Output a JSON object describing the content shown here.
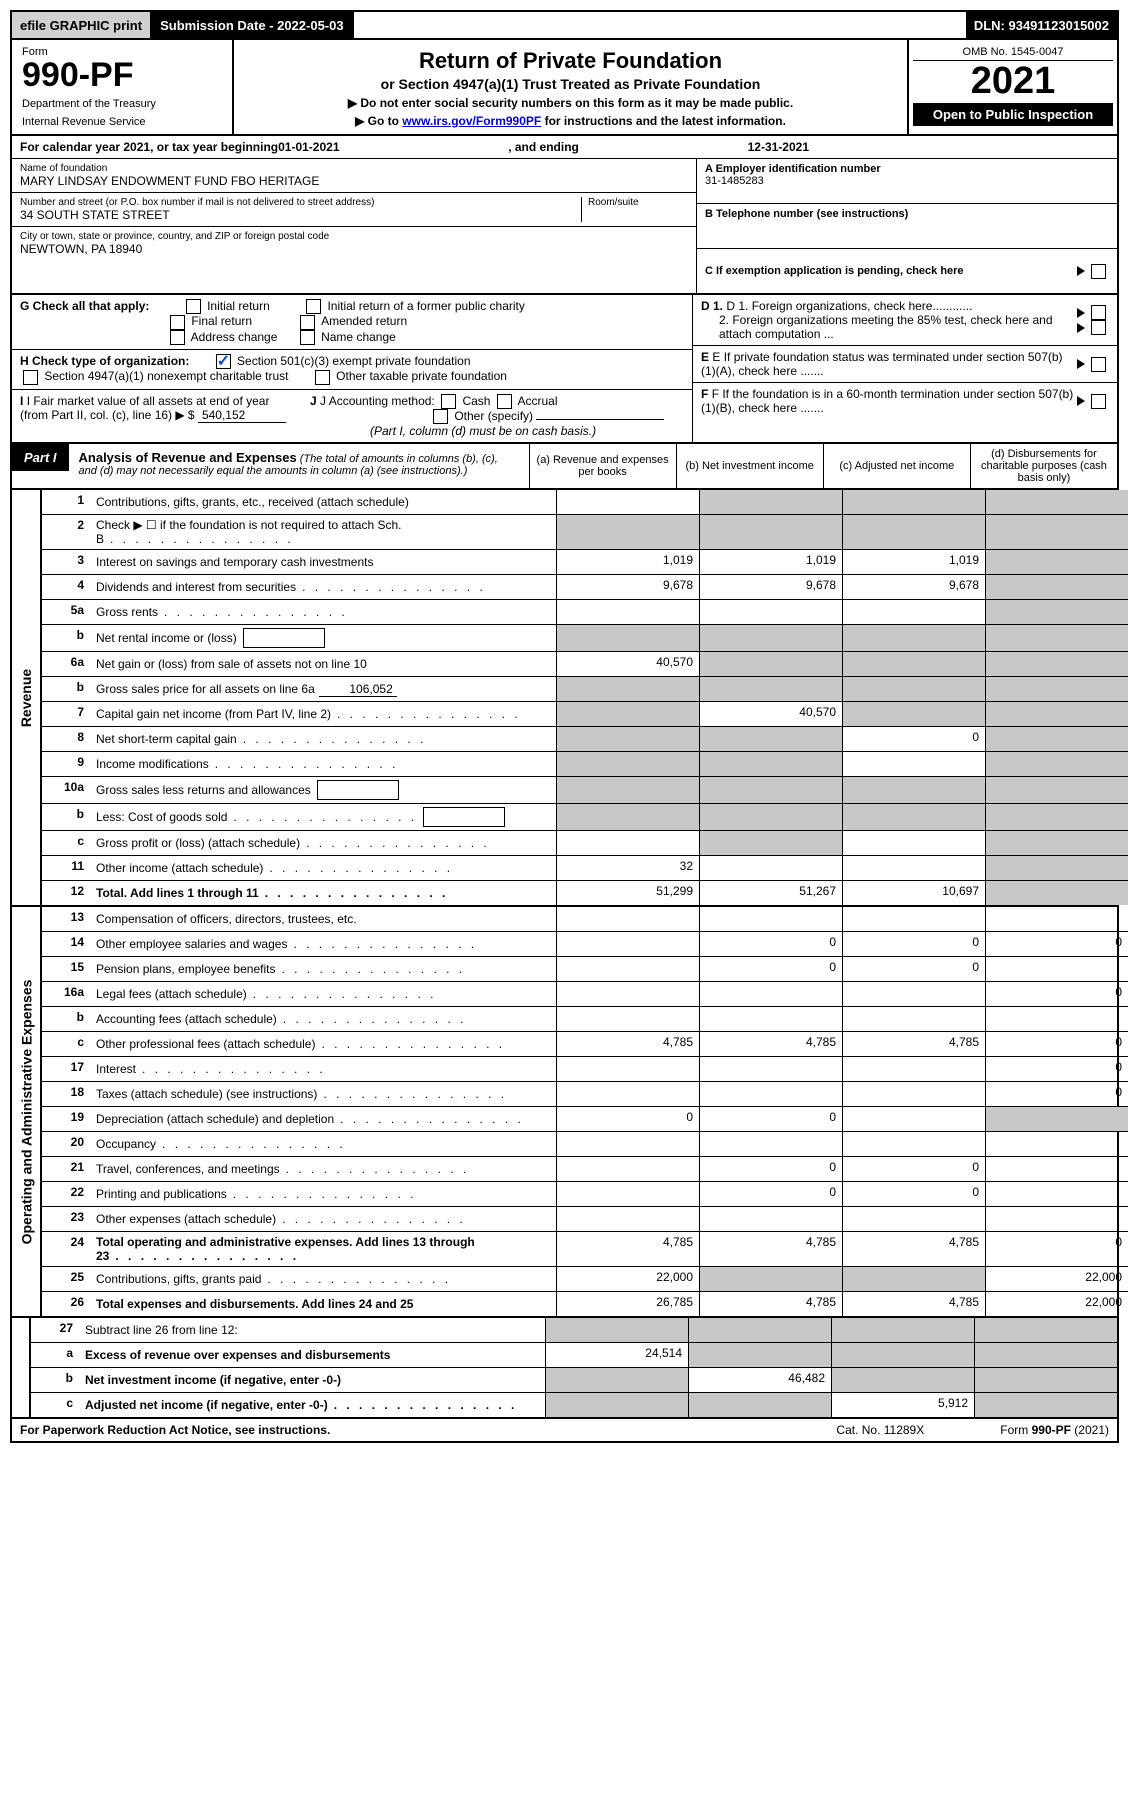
{
  "colors": {
    "black": "#000000",
    "white": "#ffffff",
    "grey_cell": "#c8c8c8",
    "grey_bar": "#d0d0d0",
    "link": "#0000cc",
    "check_blue": "#0050d0"
  },
  "top_bar": {
    "efile": "efile GRAPHIC print",
    "submission": "Submission Date - 2022-05-03",
    "dln": "DLN: 93491123015002"
  },
  "header": {
    "form_label": "Form",
    "form_number": "990-PF",
    "dept1": "Department of the Treasury",
    "dept2": "Internal Revenue Service",
    "title": "Return of Private Foundation",
    "subtitle": "or Section 4947(a)(1) Trust Treated as Private Foundation",
    "instr1": "▶ Do not enter social security numbers on this form as it may be made public.",
    "instr2_pre": "▶ Go to ",
    "instr2_link": "www.irs.gov/Form990PF",
    "instr2_post": " for instructions and the latest information.",
    "omb": "OMB No. 1545-0047",
    "year": "2021",
    "open_public": "Open to Public Inspection"
  },
  "info": {
    "cal_year_pre": "For calendar year 2021, or tax year beginning ",
    "cal_year_begin": "01-01-2021",
    "cal_year_mid": " , and ending ",
    "cal_year_end": "12-31-2021",
    "name_label": "Name of foundation",
    "name_val": "MARY LINDSAY ENDOWMENT FUND FBO HERITAGE",
    "addr_label": "Number and street (or P.O. box number if mail is not delivered to street address)",
    "addr_val": "34 SOUTH STATE STREET",
    "room_label": "Room/suite",
    "city_label": "City or town, state or province, country, and ZIP or foreign postal code",
    "city_val": "NEWTOWN, PA  18940",
    "ein_label": "A Employer identification number",
    "ein_val": "31-1485283",
    "phone_label": "B Telephone number (see instructions)",
    "c_label": "C If exemption application is pending, check here"
  },
  "checks": {
    "g_label": "G Check all that apply:",
    "g_initial": "Initial return",
    "g_initial_former": "Initial return of a former public charity",
    "g_final": "Final return",
    "g_amended": "Amended return",
    "g_address": "Address change",
    "g_name": "Name change",
    "h_label": "H Check type of organization:",
    "h_501c3": "Section 501(c)(3) exempt private foundation",
    "h_4947": "Section 4947(a)(1) nonexempt charitable trust",
    "h_other": "Other taxable private foundation",
    "i_label": "I Fair market value of all assets at end of year (from Part II, col. (c), line 16) ▶ $",
    "i_val": "540,152",
    "j_label": "J Accounting method:",
    "j_cash": "Cash",
    "j_accrual": "Accrual",
    "j_other": "Other (specify)",
    "j_note": "(Part I, column (d) must be on cash basis.)",
    "d1": "D 1. Foreign organizations, check here............",
    "d2": "2. Foreign organizations meeting the 85% test, check here and attach computation ...",
    "e": "E If private foundation status was terminated under section 507(b)(1)(A), check here .......",
    "f": "F If the foundation is in a 60-month termination under section 507(b)(1)(B), check here .......",
    "h_501c3_checked": true
  },
  "part1": {
    "tab": "Part I",
    "title": "Analysis of Revenue and Expenses",
    "note": " (The total of amounts in columns (b), (c), and (d) may not necessarily equal the amounts in column (a) (see instructions).)",
    "col_a": "(a) Revenue and expenses per books",
    "col_b": "(b) Net investment income",
    "col_c": "(c) Adjusted net income",
    "col_d": "(d) Disbursements for charitable purposes (cash basis only)"
  },
  "sections": [
    {
      "side": "Revenue",
      "rows": [
        {
          "n": "1",
          "desc": "Contributions, gifts, grants, etc., received (attach schedule)",
          "a": "",
          "b": "g",
          "c": "g",
          "d": "g"
        },
        {
          "n": "2",
          "desc": "Check ▶ ☐ if the foundation is not required to attach Sch. B",
          "dots": true,
          "a": "g",
          "b": "g",
          "c": "g",
          "d": "g"
        },
        {
          "n": "3",
          "desc": "Interest on savings and temporary cash investments",
          "a": "1,019",
          "b": "1,019",
          "c": "1,019",
          "d": "g"
        },
        {
          "n": "4",
          "desc": "Dividends and interest from securities",
          "dots": true,
          "a": "9,678",
          "b": "9,678",
          "c": "9,678",
          "d": "g"
        },
        {
          "n": "5a",
          "desc": "Gross rents",
          "dots": true,
          "a": "",
          "b": "",
          "c": "",
          "d": "g"
        },
        {
          "n": "b",
          "desc": "Net rental income or (loss)",
          "inline_box": true,
          "a": "g",
          "b": "g",
          "c": "g",
          "d": "g"
        },
        {
          "n": "6a",
          "desc": "Net gain or (loss) from sale of assets not on line 10",
          "a": "40,570",
          "b": "g",
          "c": "g",
          "d": "g"
        },
        {
          "n": "b",
          "desc": "Gross sales price for all assets on line 6a",
          "inline_under": "106,052",
          "a": "g",
          "b": "g",
          "c": "g",
          "d": "g"
        },
        {
          "n": "7",
          "desc": "Capital gain net income (from Part IV, line 2)",
          "dots": true,
          "a": "g",
          "b": "40,570",
          "c": "g",
          "d": "g"
        },
        {
          "n": "8",
          "desc": "Net short-term capital gain",
          "dots": true,
          "a": "g",
          "b": "g",
          "c": "0",
          "d": "g"
        },
        {
          "n": "9",
          "desc": "Income modifications",
          "dots": true,
          "a": "g",
          "b": "g",
          "c": "",
          "d": "g"
        },
        {
          "n": "10a",
          "desc": "Gross sales less returns and allowances",
          "inline_box": true,
          "a": "g",
          "b": "g",
          "c": "g",
          "d": "g"
        },
        {
          "n": "b",
          "desc": "Less: Cost of goods sold",
          "dots": true,
          "inline_box": true,
          "a": "g",
          "b": "g",
          "c": "g",
          "d": "g"
        },
        {
          "n": "c",
          "desc": "Gross profit or (loss) (attach schedule)",
          "dots": true,
          "a": "",
          "b": "g",
          "c": "",
          "d": "g"
        },
        {
          "n": "11",
          "desc": "Other income (attach schedule)",
          "dots": true,
          "a": "32",
          "b": "",
          "c": "",
          "d": "g"
        },
        {
          "n": "12",
          "desc": "Total. Add lines 1 through 11",
          "bold": true,
          "dots": true,
          "a": "51,299",
          "b": "51,267",
          "c": "10,697",
          "d": "g"
        }
      ]
    },
    {
      "side": "Operating and Administrative Expenses",
      "rows": [
        {
          "n": "13",
          "desc": "Compensation of officers, directors, trustees, etc.",
          "a": "",
          "b": "",
          "c": "",
          "d": ""
        },
        {
          "n": "14",
          "desc": "Other employee salaries and wages",
          "dots": true,
          "a": "",
          "b": "0",
          "c": "0",
          "d": "0"
        },
        {
          "n": "15",
          "desc": "Pension plans, employee benefits",
          "dots": true,
          "a": "",
          "b": "0",
          "c": "0",
          "d": ""
        },
        {
          "n": "16a",
          "desc": "Legal fees (attach schedule)",
          "dots": true,
          "a": "",
          "b": "",
          "c": "",
          "d": "0"
        },
        {
          "n": "b",
          "desc": "Accounting fees (attach schedule)",
          "dots": true,
          "a": "",
          "b": "",
          "c": "",
          "d": ""
        },
        {
          "n": "c",
          "desc": "Other professional fees (attach schedule)",
          "dots": true,
          "a": "4,785",
          "b": "4,785",
          "c": "4,785",
          "d": "0"
        },
        {
          "n": "17",
          "desc": "Interest",
          "dots": true,
          "a": "",
          "b": "",
          "c": "",
          "d": "0"
        },
        {
          "n": "18",
          "desc": "Taxes (attach schedule) (see instructions)",
          "dots": true,
          "a": "",
          "b": "",
          "c": "",
          "d": "0"
        },
        {
          "n": "19",
          "desc": "Depreciation (attach schedule) and depletion",
          "dots": true,
          "a": "0",
          "b": "0",
          "c": "",
          "d": "g"
        },
        {
          "n": "20",
          "desc": "Occupancy",
          "dots": true,
          "a": "",
          "b": "",
          "c": "",
          "d": ""
        },
        {
          "n": "21",
          "desc": "Travel, conferences, and meetings",
          "dots": true,
          "a": "",
          "b": "0",
          "c": "0",
          "d": ""
        },
        {
          "n": "22",
          "desc": "Printing and publications",
          "dots": true,
          "a": "",
          "b": "0",
          "c": "0",
          "d": ""
        },
        {
          "n": "23",
          "desc": "Other expenses (attach schedule)",
          "dots": true,
          "a": "",
          "b": "",
          "c": "",
          "d": ""
        },
        {
          "n": "24",
          "desc": "Total operating and administrative expenses. Add lines 13 through 23",
          "bold": true,
          "dots": true,
          "a": "4,785",
          "b": "4,785",
          "c": "4,785",
          "d": "0"
        },
        {
          "n": "25",
          "desc": "Contributions, gifts, grants paid",
          "dots": true,
          "a": "22,000",
          "b": "g",
          "c": "g",
          "d": "22,000"
        },
        {
          "n": "26",
          "desc": "Total expenses and disbursements. Add lines 24 and 25",
          "bold": true,
          "a": "26,785",
          "b": "4,785",
          "c": "4,785",
          "d": "22,000"
        }
      ]
    },
    {
      "side": "",
      "rows": [
        {
          "n": "27",
          "desc": "Subtract line 26 from line 12:",
          "a": "g",
          "b": "g",
          "c": "g",
          "d": "g"
        },
        {
          "n": "a",
          "desc": "Excess of revenue over expenses and disbursements",
          "bold": true,
          "a": "24,514",
          "b": "g",
          "c": "g",
          "d": "g"
        },
        {
          "n": "b",
          "desc": "Net investment income (if negative, enter -0-)",
          "bold": true,
          "a": "g",
          "b": "46,482",
          "c": "g",
          "d": "g"
        },
        {
          "n": "c",
          "desc": "Adjusted net income (if negative, enter -0-)",
          "bold": true,
          "dots": true,
          "a": "g",
          "b": "g",
          "c": "5,912",
          "d": "g"
        }
      ]
    }
  ],
  "footer": {
    "left": "For Paperwork Reduction Act Notice, see instructions.",
    "mid": "Cat. No. 11289X",
    "right": "Form 990-PF (2021)"
  }
}
